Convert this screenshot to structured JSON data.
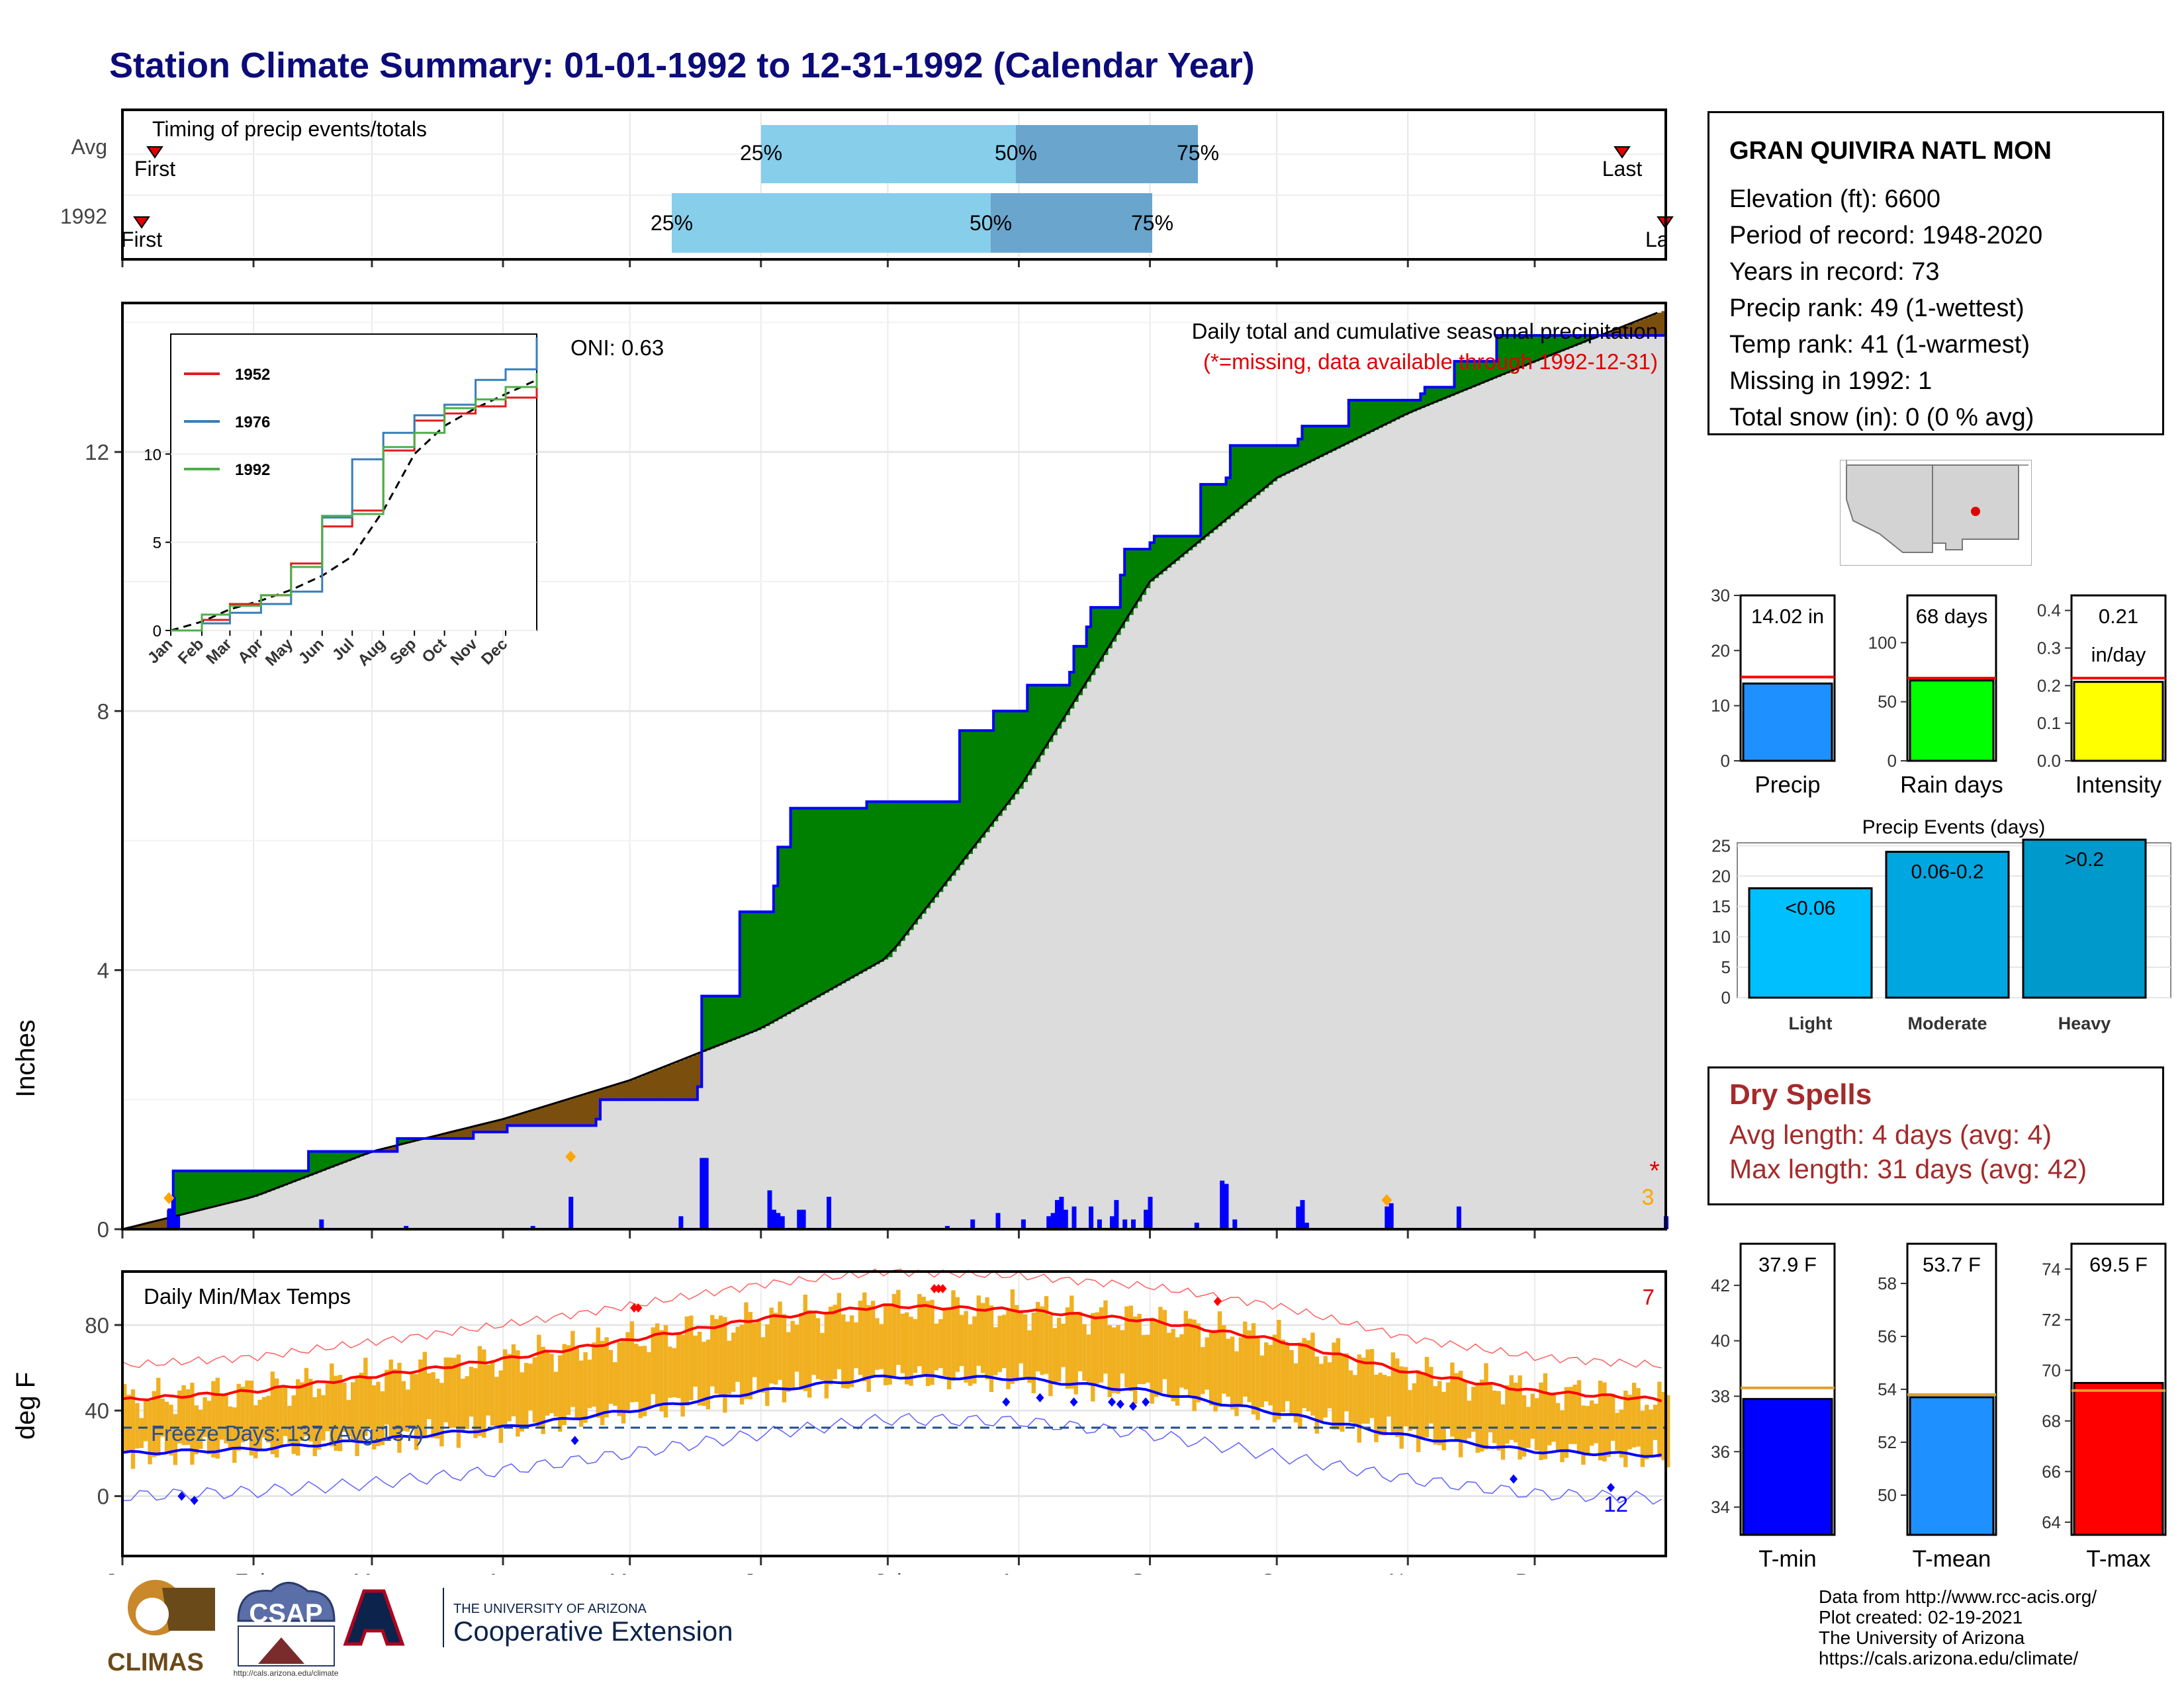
{
  "title": "Station Climate Summary: 01-01-1992 to 12-31-1992 (Calendar Year)",
  "timing": {
    "label": "Timing of precip events/totals",
    "rows": [
      {
        "label": "Avg",
        "first_label": "First",
        "last_label": "Last",
        "q": [
          "25%",
          "50%",
          "75%"
        ]
      },
      {
        "label": "1992",
        "first_label": "First",
        "last_label": "Last",
        "q": [
          "25%",
          "50%",
          "75%"
        ]
      }
    ]
  },
  "main": {
    "ylabel": "Inches",
    "subtitle": "Daily total and cumulative seasonal precipitation",
    "missing_note": "(*=missing, data available through 1992-12-31)",
    "oni": "ONI: 0.63",
    "missing_mark": "*",
    "missing_count": "3"
  },
  "temps": {
    "ylabel": "deg F",
    "label": "Daily Min/Max Temps",
    "freeze": "Freeze Days: 137 (Avg:137)",
    "record_high_count": "7",
    "record_low_count": "12"
  },
  "months": [
    "Jan",
    "Feb",
    "Mar",
    "Apr",
    "May",
    "Jun",
    "Jul",
    "Aug",
    "Sep",
    "Oct",
    "Nov",
    "Dec"
  ],
  "station": {
    "name": "GRAN QUIVIRA NATL MON",
    "lines": [
      "Elevation (ft): 6600",
      "Period of record: 1948-2020",
      "Years in record: 73",
      "Precip rank: 49 (1-wettest)",
      "Temp rank: 41 (1-warmest)",
      "Missing in 1992: 1",
      "Total snow (in): 0 (0 % avg)"
    ]
  },
  "dry_spells": {
    "title": "Dry Spells",
    "avg": "Avg length: 4 days (avg: 4)",
    "max": "Max length: 31 days (avg: 42)"
  },
  "credit": [
    "Data from http://www.rcc-acis.org/",
    "Plot created: 02-19-2021",
    "The University of Arizona",
    "https://cals.arizona.edu/climate/"
  ],
  "logos": {
    "climas": "CLIMAS",
    "csap": "CSAP",
    "csap_url": "http://cals.arizona.edu/climate",
    "ua_small": "THE UNIVERSITY OF ARIZONA",
    "ua_big": "Cooperative Extension"
  },
  "colors": {
    "above": "#008000",
    "below": "#7a4f0e",
    "cum": "#0000ff",
    "normal_fill": "#dcdcdc",
    "tbar": "#f0b020",
    "tmax": "#ff0000",
    "tmin": "#0000ff"
  },
  "chart_data": [
    {
      "type": "area",
      "title": "Daily total and cumulative seasonal precipitation",
      "ylabel": "Inches",
      "ylim": [
        0,
        14.3
      ],
      "x_units": "day of year",
      "series": [
        {
          "name": "1992",
          "x": [
            1,
            12,
            13,
            44,
            45,
            65,
            66,
            83,
            84,
            91,
            92,
            113,
            114,
            137,
            138,
            146,
            147,
            155,
            156,
            158,
            159,
            176,
            177,
            198,
            199,
            206,
            207,
            214,
            215,
            225,
            226,
            229,
            230,
            237,
            238,
            244,
            245,
            255,
            256,
            262,
            263,
            279,
            280,
            290,
            291,
            308,
            309,
            315,
            316,
            325,
            326,
            345,
            346,
            366
          ],
          "values": [
            0,
            0.3,
            0.9,
            0.9,
            1.2,
            1.2,
            1.4,
            1.4,
            1.5,
            1.5,
            1.6,
            1.7,
            2.0,
            2.2,
            3.6,
            3.6,
            4.9,
            5.3,
            5.9,
            5.9,
            6.5,
            6.5,
            6.6,
            6.6,
            7.7,
            7.7,
            8.0,
            8.0,
            8.4,
            8.6,
            9.0,
            9.3,
            9.6,
            10.1,
            10.5,
            10.6,
            10.7,
            10.7,
            11.5,
            11.6,
            12.1,
            12.2,
            12.4,
            12.4,
            12.8,
            12.9,
            13.0,
            13.0,
            13.4,
            13.4,
            13.8,
            13.8,
            13.8,
            13.85
          ]
        },
        {
          "name": "Avg",
          "x": [
            1,
            32,
            60,
            91,
            121,
            152,
            182,
            213,
            244,
            274,
            305,
            335,
            366
          ],
          "values": [
            0,
            0.5,
            1.2,
            1.7,
            2.3,
            3.1,
            4.2,
            6.8,
            10.0,
            11.6,
            12.6,
            13.4,
            14.2
          ]
        }
      ],
      "daily_bars_in": {
        "x": [
          12,
          13,
          14,
          48,
          68,
          98,
          107,
          133,
          138,
          139,
          154,
          155,
          156,
          157,
          161,
          162,
          168,
          196,
          202,
          208,
          214,
          220,
          221,
          222,
          223,
          224,
          226,
          230,
          232,
          235,
          236,
          238,
          240,
          243,
          244,
          255,
          261,
          262,
          264,
          279,
          280,
          281,
          300,
          301,
          317,
          366
        ],
        "values": [
          0.3,
          0.5,
          0.2,
          0.15,
          0.05,
          0.05,
          0.5,
          0.2,
          1.1,
          1.1,
          0.6,
          0.3,
          0.25,
          0.2,
          0.3,
          0.3,
          0.5,
          0.05,
          0.15,
          0.25,
          0.15,
          0.2,
          0.25,
          0.45,
          0.5,
          0.3,
          0.35,
          0.35,
          0.15,
          0.2,
          0.45,
          0.15,
          0.15,
          0.3,
          0.5,
          0.1,
          0.75,
          0.7,
          0.15,
          0.35,
          0.45,
          0.1,
          0.35,
          0.4,
          0.35,
          0.2
        ]
      }
    },
    {
      "type": "line",
      "title": "Daily Min/Max Temps",
      "ylabel": "deg F",
      "ylim": [
        -28,
        105
      ],
      "series": [
        {
          "name": "Avg max",
          "x": [
            1,
            32,
            60,
            91,
            121,
            152,
            182,
            213,
            244,
            274,
            305,
            335,
            366
          ],
          "values": [
            45,
            49,
            56,
            64,
            73,
            83,
            89,
            87,
            82,
            73,
            58,
            49,
            45
          ]
        },
        {
          "name": "Avg min",
          "x": [
            1,
            32,
            60,
            91,
            121,
            152,
            182,
            213,
            244,
            274,
            305,
            335,
            366
          ],
          "values": [
            20,
            22,
            26,
            32,
            40,
            49,
            56,
            55,
            49,
            39,
            28,
            21,
            19
          ]
        },
        {
          "name": "Freeze",
          "x": [
            1,
            366
          ],
          "values": [
            32,
            32
          ]
        }
      ]
    },
    {
      "type": "bar",
      "categories": [
        "Precip"
      ],
      "values": [
        14.02
      ],
      "normal": [
        15.2
      ],
      "ylim": [
        0,
        30
      ],
      "annotation": "14.02 in"
    },
    {
      "type": "bar",
      "categories": [
        "Rain days"
      ],
      "values": [
        68
      ],
      "normal": [
        70
      ],
      "ylim": [
        0,
        140
      ],
      "annotation": "68 days"
    },
    {
      "type": "bar",
      "categories": [
        "Intensity"
      ],
      "values": [
        0.21
      ],
      "normal": [
        0.22
      ],
      "ylim": [
        0,
        0.44
      ],
      "annotation": [
        "0.21",
        "in/day"
      ]
    },
    {
      "type": "bar",
      "title": "Precip Events (days)",
      "categories": [
        "Light",
        "Moderate",
        "Heavy"
      ],
      "values": [
        18,
        24,
        26
      ],
      "labels": [
        "<0.06",
        "0.06-0.2",
        ">0.2"
      ],
      "ylim": [
        0,
        27
      ]
    },
    {
      "type": "bar",
      "categories": [
        "T-min"
      ],
      "values": [
        37.9
      ],
      "normal": [
        38.3
      ],
      "ylim": [
        33,
        43.5
      ],
      "annotation": "37.9 F"
    },
    {
      "type": "bar",
      "categories": [
        "T-mean"
      ],
      "values": [
        53.7
      ],
      "normal": [
        53.8
      ],
      "ylim": [
        48.5,
        59.5
      ],
      "annotation": "53.7 F"
    },
    {
      "type": "bar",
      "categories": [
        "T-max"
      ],
      "values": [
        69.5
      ],
      "normal": [
        69.2
      ],
      "ylim": [
        63.5,
        75
      ],
      "annotation": "69.5 F"
    }
  ]
}
